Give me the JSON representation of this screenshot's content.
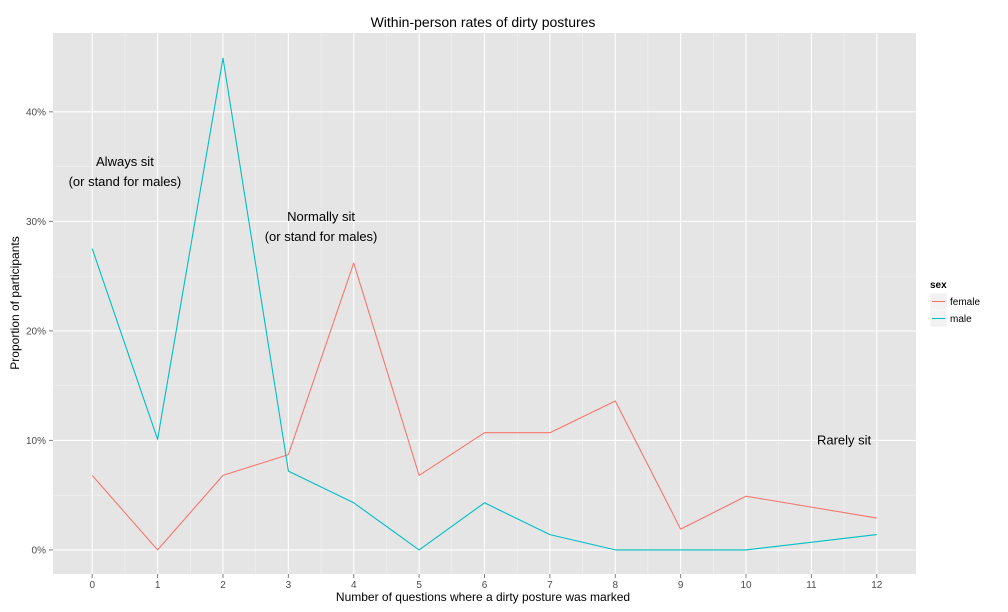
{
  "chart_data": {
    "type": "line",
    "title": "Within-person rates of dirty postures",
    "xlabel": "Number of questions where a dirty posture was marked",
    "ylabel": "Proportion of participants",
    "x": [
      0,
      1,
      2,
      3,
      4,
      5,
      6,
      7,
      8,
      9,
      10,
      11,
      12
    ],
    "xlim": [
      -0.6,
      12.6
    ],
    "ylim": [
      -0.022,
      0.472
    ],
    "y_ticks": [
      0,
      0.1,
      0.2,
      0.3,
      0.4
    ],
    "y_tick_labels": [
      "0%",
      "10%",
      "20%",
      "30%",
      "40%"
    ],
    "grid": true,
    "legend": {
      "title": "sex",
      "position": "right"
    },
    "series": [
      {
        "name": "female",
        "color": "#F8766D",
        "x": [
          0,
          1,
          2,
          3,
          4,
          5,
          6,
          7,
          8,
          9,
          10,
          12
        ],
        "values": [
          0.068,
          0.0,
          0.068,
          0.087,
          0.262,
          0.068,
          0.107,
          0.107,
          0.136,
          0.019,
          0.049,
          0.029
        ]
      },
      {
        "name": "male",
        "color": "#00BFC4",
        "x": [
          0,
          1,
          2,
          3,
          4,
          5,
          6,
          7,
          8,
          9,
          10,
          12
        ],
        "values": [
          0.275,
          0.101,
          0.449,
          0.072,
          0.043,
          0.0,
          0.043,
          0.014,
          0.0,
          0.0,
          0.0,
          0.014
        ]
      }
    ],
    "annotations": [
      {
        "lines": [
          "Always sit",
          "(or stand for males)"
        ],
        "x": 0.5,
        "y": 0.345
      },
      {
        "lines": [
          "Normally sit",
          "(or stand for males)"
        ],
        "x": 3.5,
        "y": 0.295
      },
      {
        "lines": [
          "Rarely sit"
        ],
        "x": 11.5,
        "y": 0.1
      }
    ]
  }
}
